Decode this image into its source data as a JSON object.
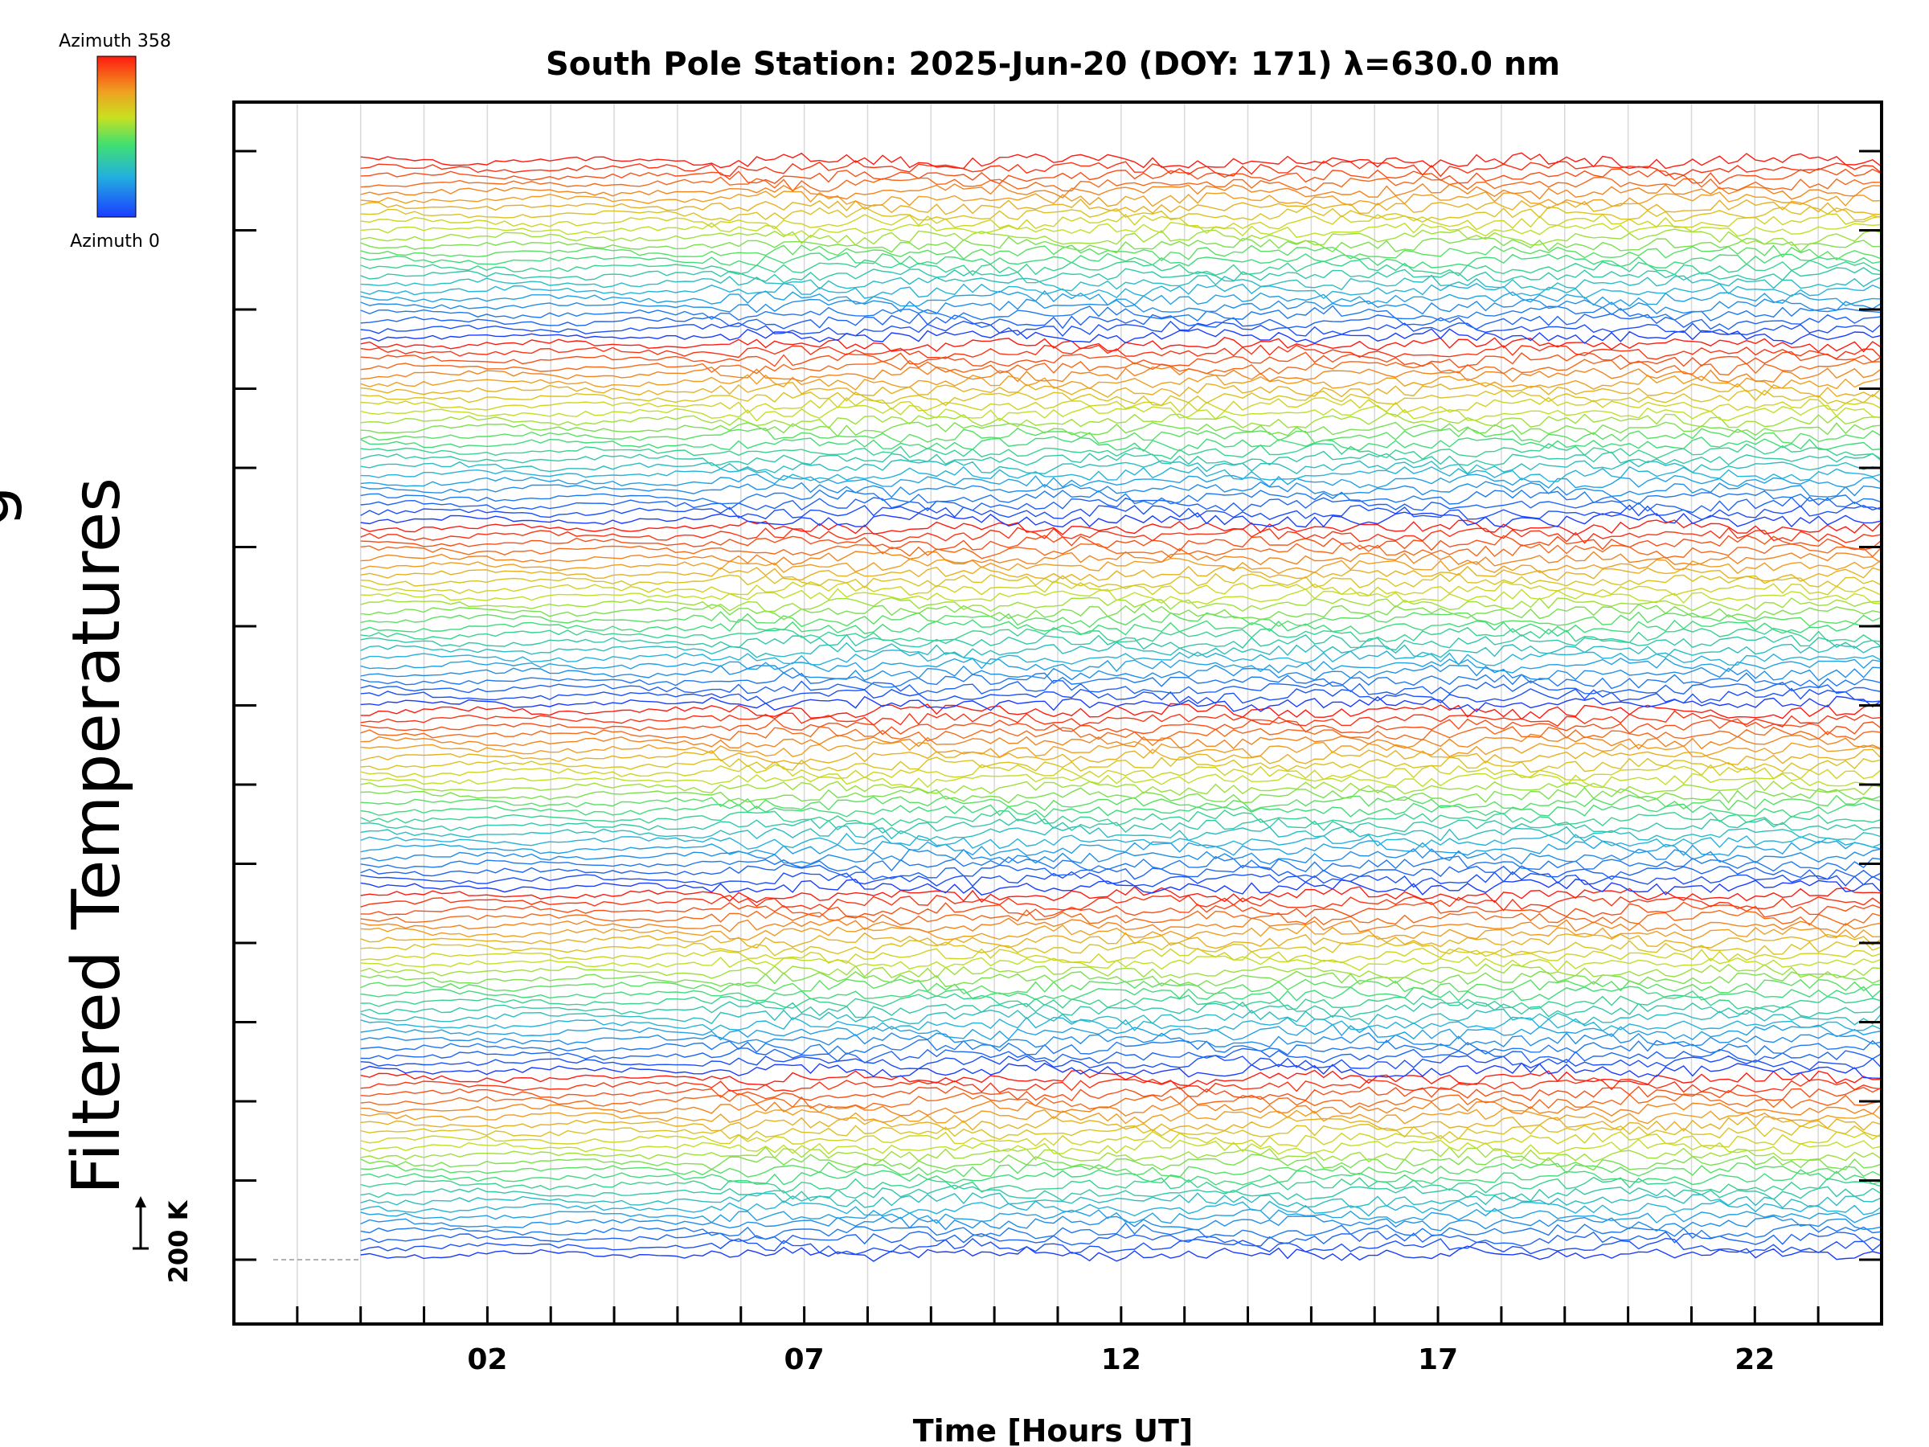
{
  "chart_data": {
    "type": "line",
    "title": "South Pole Station: 2025-Jun-20 (DOY: 171) λ=630.0 nm",
    "xlabel": "Time [Hours UT]",
    "ylabel": "Filtered Temperatures",
    "ylabel_partial": "g",
    "x_tick_labels": [
      "02",
      "07",
      "12",
      "17",
      "22"
    ],
    "x_tick_values": [
      2,
      7,
      12,
      17,
      22
    ],
    "xlim": [
      -2,
      24
    ],
    "data_start_hour": 0,
    "data_end_hour": 24,
    "series_count": 144,
    "scale_bar_label": "200 K",
    "grid": "vertical-hourly",
    "colorbar": {
      "label_top": "Azimuth 358",
      "label_bottom": "Azimuth 0",
      "min": 0,
      "max": 358,
      "colormap": "rainbow"
    }
  }
}
